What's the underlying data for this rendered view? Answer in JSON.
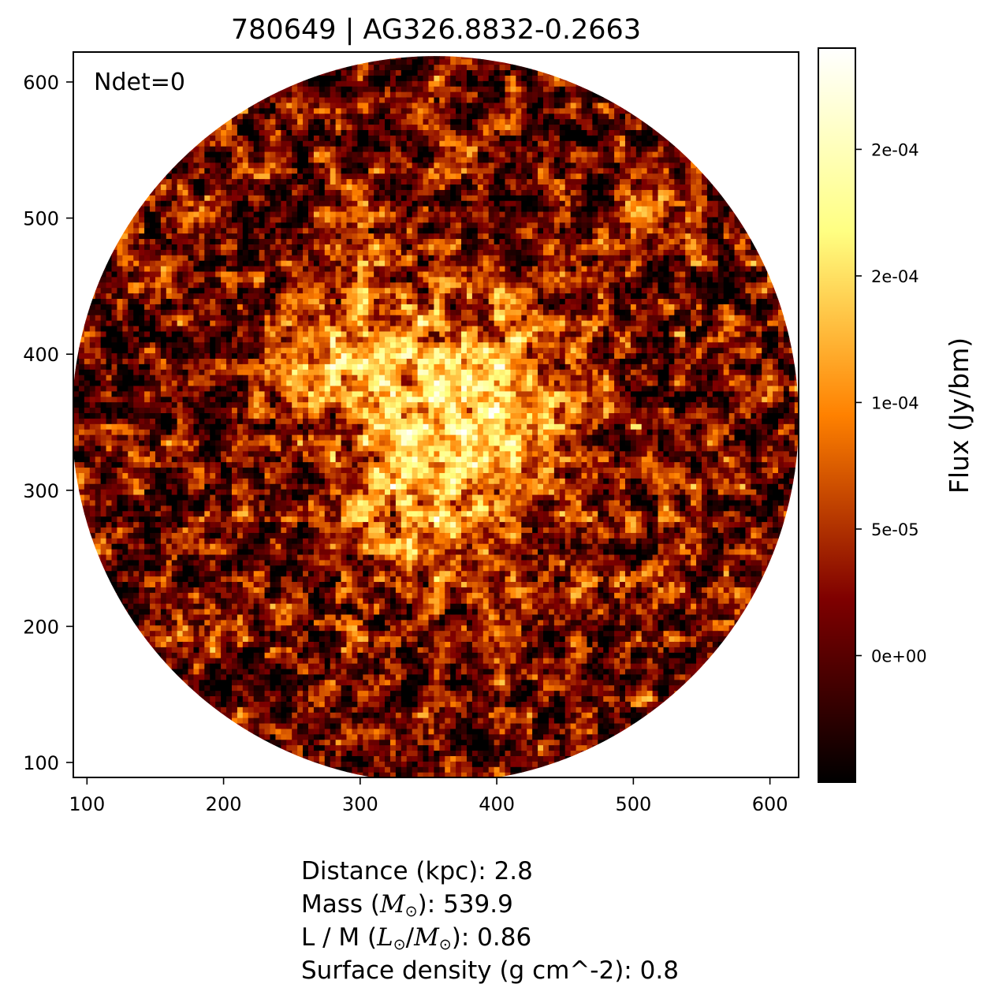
{
  "chart_data": {
    "type": "heatmap",
    "title": "780649 | AG326.8832-0.2663",
    "annotation": "Ndet=0",
    "xlim": [
      90,
      621
    ],
    "ylim": [
      89,
      622
    ],
    "xticks": [
      100,
      200,
      300,
      400,
      500,
      600
    ],
    "yticks": [
      100,
      200,
      300,
      400,
      500,
      600
    ],
    "image_center": [
      355,
      352
    ],
    "image_radius": 266,
    "outside_circle": "blank (white)",
    "colormap": "afmhot",
    "colorbar": {
      "label": "Flux (Jy/bm)",
      "vmin": -5e-05,
      "vmax": 0.00024,
      "ticks": [
        0,
        5e-05,
        0.0001,
        0.00015,
        0.0002
      ],
      "tick_labels": [
        "0e+00",
        "5e-05",
        "1e-04",
        "2e-04",
        "2e-04"
      ]
    },
    "bright_features": [
      {
        "description": "central bright core",
        "x": 385,
        "y": 360
      },
      {
        "description": "bright ridge toward upper-left",
        "x": 300,
        "y": 395
      },
      {
        "description": "bright ridge toward lower-left",
        "x": 340,
        "y": 280
      }
    ]
  },
  "info": {
    "distance_label": "Distance (kpc): ",
    "distance_value": "2.8",
    "mass_prefix": "Mass (",
    "mass_symbol": "M",
    "mass_sub": "⊙",
    "mass_suffix": "): ",
    "mass_value": "539.9",
    "lm_prefix": "L / M (",
    "lm_l": "L",
    "lm_m": "M",
    "lm_sub": "⊙",
    "lm_suffix": "): ",
    "lm_value": "0.86",
    "surface_label": "Surface density (g cm^-2): ",
    "surface_value": "0.8"
  }
}
